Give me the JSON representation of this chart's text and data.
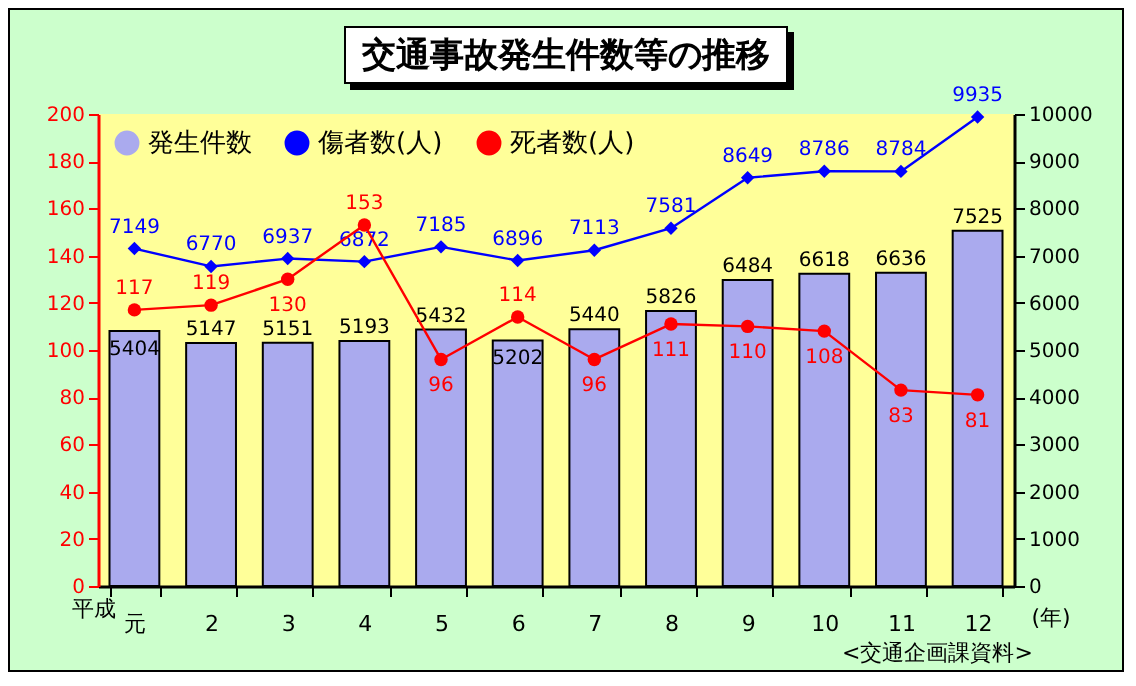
{
  "chart_data": {
    "type": "bar",
    "title": "交通事故発生件数等の推移",
    "xlabel": "(年)",
    "categories": [
      "元",
      "2",
      "3",
      "4",
      "5",
      "6",
      "7",
      "8",
      "9",
      "10",
      "11",
      "12"
    ],
    "series": [
      {
        "name": "発生件数",
        "axis": "y2",
        "color": "#aaaaee",
        "values": [
          5404,
          5147,
          5151,
          5193,
          5432,
          5202,
          5440,
          5826,
          6484,
          6618,
          6636,
          7525
        ]
      },
      {
        "name": "傷者数(人)",
        "type": "line",
        "axis": "y2",
        "color": "#0000ff",
        "marker": "diamond",
        "values": [
          7149,
          6770,
          6937,
          6872,
          7185,
          6896,
          7113,
          7581,
          8649,
          8786,
          8784,
          9935
        ]
      },
      {
        "name": "死者数(人)",
        "type": "line",
        "color": "#ff0000",
        "marker": "circle",
        "values": [
          117,
          119,
          130,
          153,
          96,
          114,
          96,
          111,
          110,
          108,
          83,
          81
        ]
      }
    ],
    "ylim": [
      0,
      200
    ],
    "yticks": [
      0,
      20,
      40,
      60,
      80,
      100,
      120,
      140,
      160,
      180,
      200
    ],
    "y2lim": [
      0,
      10000
    ],
    "y2ticks": [
      0,
      1000,
      2000,
      3000,
      4000,
      5000,
      6000,
      7000,
      8000,
      9000,
      10000
    ],
    "data_labels": true,
    "grid": false,
    "legend": "top left",
    "annotations": [
      "平成",
      "<交通企画課資料>"
    ]
  }
}
